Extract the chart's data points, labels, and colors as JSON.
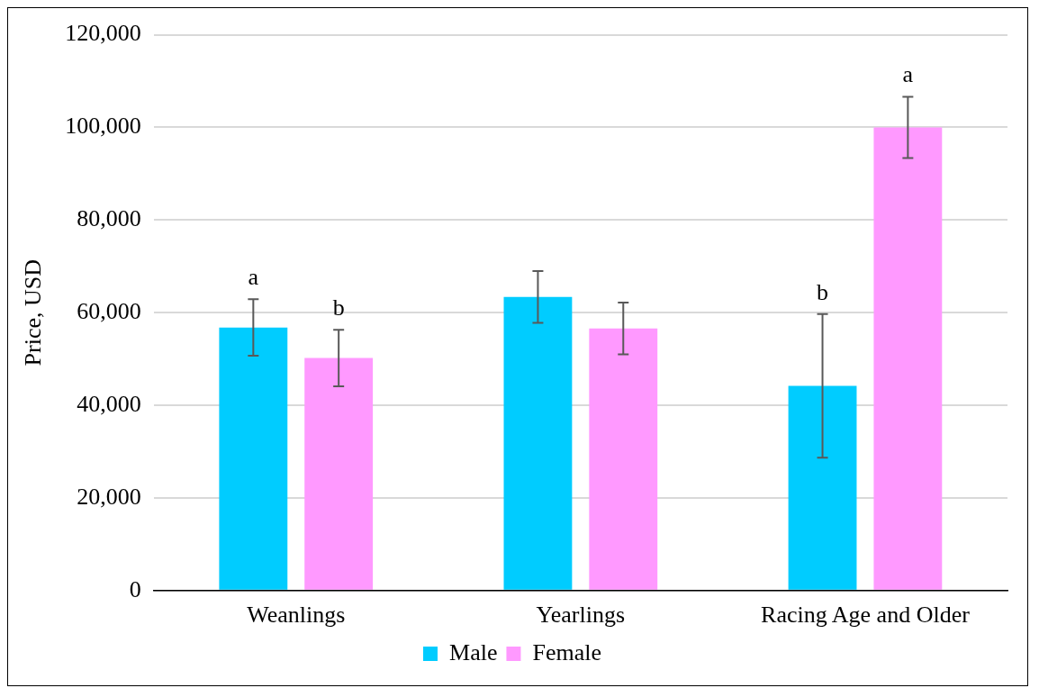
{
  "chart_data": {
    "type": "bar",
    "ylabel": "Price, USD",
    "categories": [
      "Weanlings",
      "Yearlings",
      "Racing Age and Older"
    ],
    "series": [
      {
        "name": "Male",
        "color": "#00ccff",
        "values": [
          56800,
          63400,
          44200
        ],
        "errors": [
          6100,
          5600,
          15500
        ]
      },
      {
        "name": "Female",
        "color": "#ff99ff",
        "values": [
          50200,
          56600,
          100000
        ],
        "errors": [
          6100,
          5600,
          6600
        ]
      }
    ],
    "ylim": [
      0,
      120000
    ],
    "yticks": [
      0,
      {
        "value": 20000,
        "label": "20,000"
      },
      {
        "value": 40000,
        "label": "40,000"
      },
      {
        "value": 60000,
        "label": "60,000"
      },
      {
        "value": 80000,
        "label": "80,000"
      },
      {
        "value": 100000,
        "label": "100,000"
      },
      {
        "value": 120000,
        "label": "120,000"
      }
    ],
    "grid": "y",
    "legend": "bottom",
    "annotations": [
      "a",
      "b",
      "b",
      "a"
    ]
  }
}
